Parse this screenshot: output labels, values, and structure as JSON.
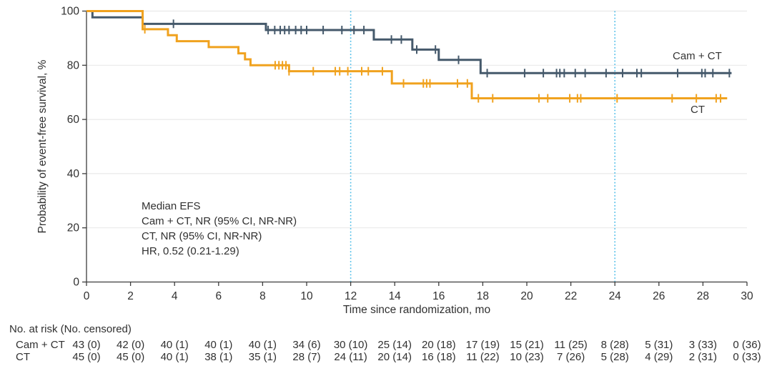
{
  "chart_data": {
    "type": "line",
    "subtype": "kaplan-meier-step",
    "title": "",
    "xlabel": "Time since randomization, mo",
    "ylabel": "Probability of event-free survival, %",
    "xlim": [
      0,
      30
    ],
    "ylim": [
      0,
      100
    ],
    "xticks": [
      0,
      2,
      4,
      6,
      8,
      10,
      12,
      14,
      16,
      18,
      20,
      22,
      24,
      26,
      28,
      30
    ],
    "yticks": [
      0,
      20,
      40,
      60,
      80,
      100
    ],
    "grid": "horizontal-light",
    "legend_position": "inline-labels-right",
    "reference_lines_x": [
      12,
      24
    ],
    "colors": {
      "grid": "#e9e9e9",
      "axis": "#3d3d3d",
      "reference": "#4fbde8",
      "text": "#303030",
      "cam_ct": "#45596b",
      "ct": "#f0a21f"
    },
    "series": [
      {
        "name": "Cam + CT",
        "color": "#45596b",
        "steps": [
          [
            0,
            100
          ],
          [
            0.27,
            97.7
          ],
          [
            2.55,
            95.3
          ],
          [
            8.15,
            93.0
          ],
          [
            13.05,
            89.5
          ],
          [
            14.8,
            85.8
          ],
          [
            16.0,
            82.0
          ],
          [
            17.9,
            77.1
          ]
        ],
        "end_x": 29.3,
        "censor_x": [
          3.95,
          8.25,
          8.55,
          8.8,
          9.0,
          9.2,
          9.5,
          9.75,
          10.0,
          10.75,
          11.6,
          12.15,
          12.6,
          13.85,
          14.3,
          15.0,
          15.85,
          16.9,
          18.2,
          19.9,
          20.75,
          21.35,
          21.5,
          21.7,
          22.2,
          22.65,
          23.6,
          24.35,
          25.0,
          25.2,
          26.85,
          27.95,
          28.1,
          28.45,
          29.2
        ]
      },
      {
        "name": "CT",
        "color": "#f0a21f",
        "steps": [
          [
            0,
            100
          ],
          [
            2.55,
            93.3
          ],
          [
            3.7,
            91.1
          ],
          [
            4.1,
            88.9
          ],
          [
            5.55,
            86.7
          ],
          [
            6.9,
            84.4
          ],
          [
            7.2,
            82.2
          ],
          [
            7.45,
            80.0
          ],
          [
            9.2,
            77.8
          ],
          [
            13.87,
            73.3
          ],
          [
            17.5,
            67.8
          ]
        ],
        "end_x": 29.1,
        "censor_x": [
          2.65,
          8.57,
          8.74,
          8.9,
          9.06,
          9.2,
          10.3,
          11.3,
          11.5,
          11.87,
          12.5,
          12.8,
          13.44,
          14.4,
          15.3,
          15.45,
          15.6,
          16.85,
          17.3,
          17.8,
          18.45,
          20.55,
          20.95,
          21.95,
          22.3,
          22.45,
          24.1,
          26.6,
          27.7,
          28.6,
          28.8
        ]
      }
    ],
    "annotation": {
      "lines": [
        "Median EFS",
        "Cam + CT, NR (95% CI, NR-NR)",
        "CT, NR (95% CI, NR-NR)",
        "HR, 0.52 (0.21-1.29)"
      ]
    }
  },
  "risk_table": {
    "header": "No. at risk (No. censored)",
    "time_points": [
      0,
      2,
      4,
      6,
      8,
      10,
      12,
      14,
      16,
      18,
      20,
      22,
      24,
      26,
      28,
      30
    ],
    "rows": [
      {
        "label": "Cam + CT",
        "values": [
          "43 (0)",
          "42 (0)",
          "40 (1)",
          "40 (1)",
          "40 (1)",
          "34 (6)",
          "30 (10)",
          "25 (14)",
          "20 (18)",
          "17 (19)",
          "15 (21)",
          "11 (25)",
          "8 (28)",
          "5 (31)",
          "3 (33)",
          "0 (36)"
        ]
      },
      {
        "label": "CT",
        "values": [
          "45 (0)",
          "45 (0)",
          "40 (1)",
          "38 (1)",
          "35 (1)",
          "28 (7)",
          "24 (11)",
          "20 (14)",
          "16 (18)",
          "11 (22)",
          "10 (23)",
          "7 (26)",
          "5 (28)",
          "4 (29)",
          "2 (31)",
          "0 (33)"
        ]
      }
    ]
  }
}
